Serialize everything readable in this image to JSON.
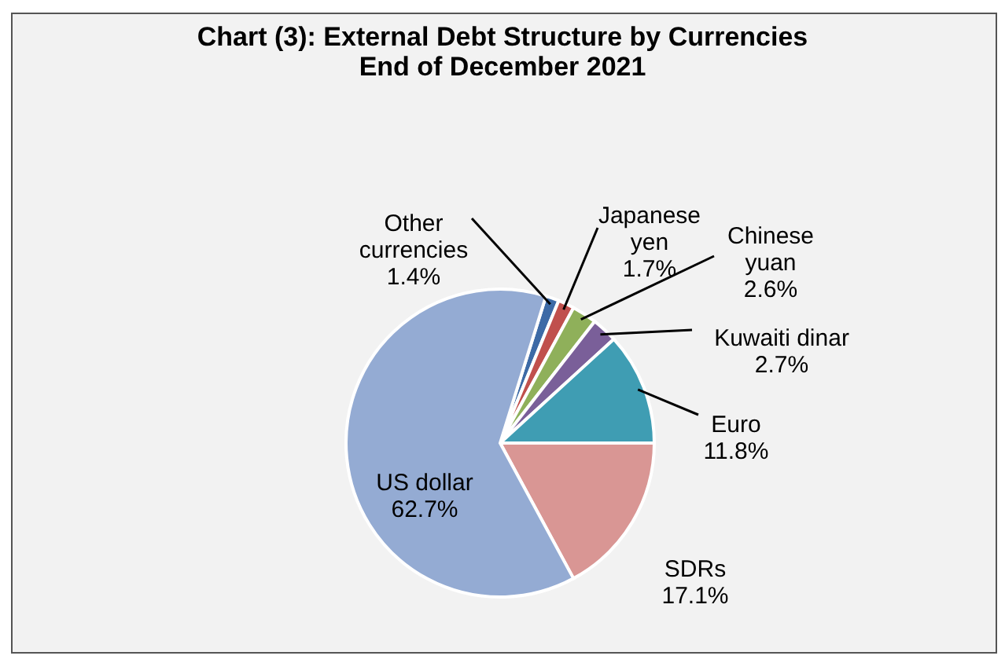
{
  "chart_data": {
    "type": "pie",
    "title": "Chart (3): External Debt Structure by Currencies\nEnd of December 2021",
    "categories": [
      "Other\ncurrencies",
      "Japanese\nyen",
      "Chinese\nyuan",
      "Kuwaiti dinar",
      "Euro",
      "SDRs",
      "US dollar"
    ],
    "values": [
      1.4,
      1.7,
      2.6,
      2.7,
      11.8,
      17.1,
      62.7
    ],
    "value_labels": [
      "1.4%",
      "1.7%",
      "2.6%",
      "2.7%",
      "11.8%",
      "17.1%",
      "62.7%"
    ],
    "colors": [
      "#3d6aa6",
      "#c0504d",
      "#8fb05a",
      "#7a5f99",
      "#3f9db3",
      "#d99694",
      "#94abd3"
    ],
    "legend": false
  }
}
